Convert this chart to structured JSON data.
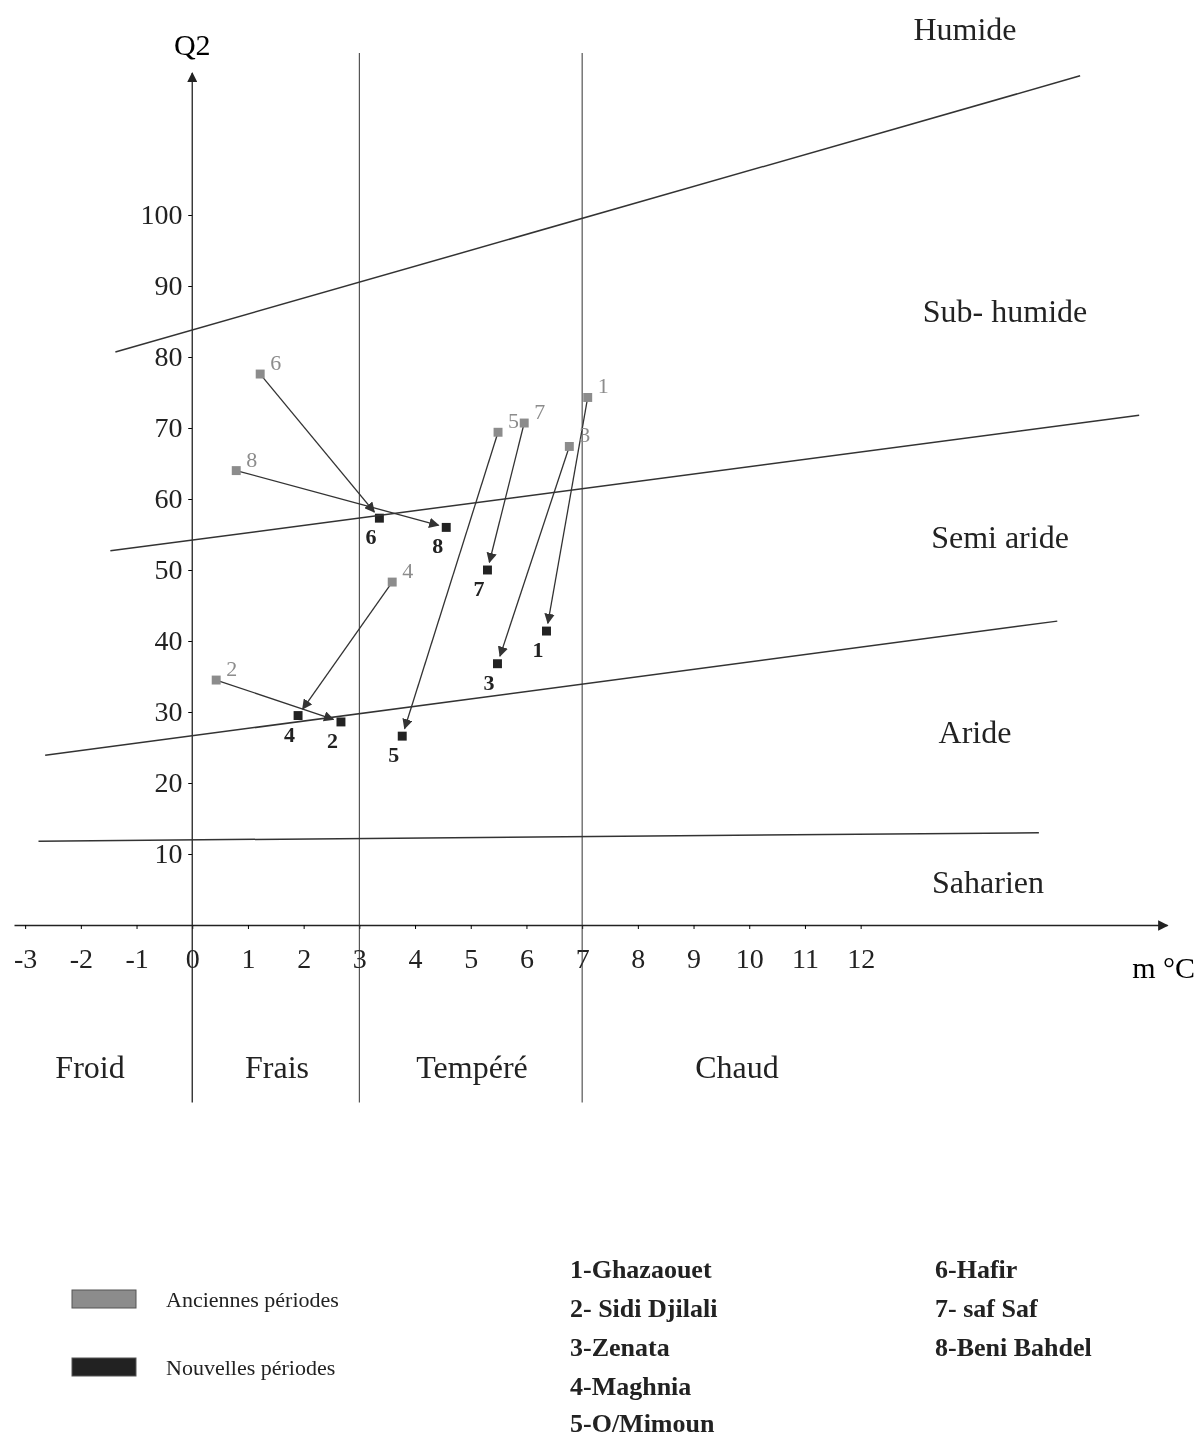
{
  "chart_data": {
    "type": "scatter",
    "xlabel": "m °C",
    "ylabel": "Q2",
    "xlim": [
      -3.2,
      17.5
    ],
    "ylim": [
      -25,
      120
    ],
    "xticks": [
      -3,
      -2,
      -1,
      0,
      1,
      2,
      3,
      4,
      5,
      6,
      7,
      8,
      9,
      10,
      11,
      12
    ],
    "yticks": [
      10,
      20,
      30,
      40,
      50,
      60,
      70,
      80,
      90,
      100
    ],
    "marker": "square",
    "legend": "bottom left",
    "grid": false,
    "series": [
      {
        "name": "Anciennes périodes",
        "color": "#8c8c8c",
        "x": [
          7.1,
          0.43,
          6.77,
          3.59,
          5.49,
          1.22,
          5.96,
          0.79
        ],
        "values": [
          74.3,
          34.5,
          67.4,
          48.3,
          69.4,
          77.6,
          70.7,
          64
        ]
      },
      {
        "name": "Nouvelles périodes",
        "color": "#222222",
        "x": [
          6.36,
          2.67,
          5.48,
          1.9,
          3.77,
          3.36,
          5.3,
          4.56
        ],
        "values": [
          41.4,
          28.6,
          36.8,
          29.5,
          26.6,
          57.3,
          50,
          56
        ]
      },
      {
        "type": "line",
        "marker": "none",
        "color": "#333333",
        "x": [
          -1.38,
          15.94
        ],
        "values": [
          80.7,
          119.6
        ]
      },
      {
        "type": "line",
        "marker": "none",
        "color": "#333333",
        "x": [
          -1.47,
          17.0
        ],
        "values": [
          52.7,
          71.8
        ]
      },
      {
        "type": "line",
        "marker": "none",
        "color": "#333333",
        "x": [
          -2.64,
          15.53
        ],
        "values": [
          23.9,
          42.8
        ]
      },
      {
        "type": "line",
        "marker": "none",
        "color": "#333333",
        "x": [
          -2.76,
          15.2
        ],
        "values": [
          11.8,
          13.0
        ]
      }
    ],
    "ref_lines": [
      {
        "axis": "x",
        "value": 3
      },
      {
        "axis": "x",
        "value": 7
      }
    ],
    "annotations": [
      "Humide",
      "Sub- humide",
      "Semi aride",
      "Aride",
      "Saharien",
      "Froid",
      "Frais",
      "Tempéré",
      "Chaud",
      "1-Ghazaouet",
      "2- Sidi Djilali",
      "3-Zenata",
      "4-Maghnia",
      "5-O/Mimoun",
      "6-Hafir",
      "7- saf Saf",
      "8-Beni Bahdel",
      {
        "text": "1",
        "x": 7.1,
        "y": 74.3
      },
      {
        "text": "2",
        "x": 0.43,
        "y": 34.5
      },
      {
        "text": "3",
        "x": 6.77,
        "y": 67.4
      },
      {
        "text": "4",
        "x": 3.59,
        "y": 48.3
      },
      {
        "text": "5",
        "x": 5.49,
        "y": 69.4
      },
      {
        "text": "6",
        "x": 1.22,
        "y": 77.6
      },
      {
        "text": "7",
        "x": 5.96,
        "y": 70.7
      },
      {
        "text": "8",
        "x": 0.79,
        "y": 64
      },
      {
        "text": "1",
        "x": 6.36,
        "y": 41.4
      },
      {
        "text": "2",
        "x": 2.67,
        "y": 28.6
      },
      {
        "text": "3",
        "x": 5.48,
        "y": 36.8
      },
      {
        "text": "4",
        "x": 1.9,
        "y": 29.5
      },
      {
        "text": "5",
        "x": 3.77,
        "y": 26.6
      },
      {
        "text": "6",
        "x": 3.36,
        "y": 57.3
      },
      {
        "text": "7",
        "x": 5.3,
        "y": 50
      },
      {
        "text": "8",
        "x": 4.56,
        "y": 56
      }
    ]
  }
}
